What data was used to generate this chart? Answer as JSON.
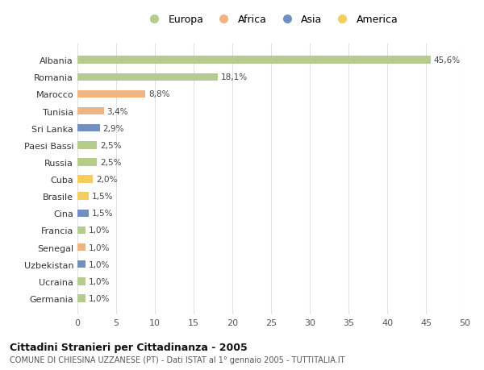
{
  "countries": [
    "Albania",
    "Romania",
    "Marocco",
    "Tunisia",
    "Sri Lanka",
    "Paesi Bassi",
    "Russia",
    "Cuba",
    "Brasile",
    "Cina",
    "Francia",
    "Senegal",
    "Uzbekistan",
    "Ucraina",
    "Germania"
  ],
  "values": [
    45.6,
    18.1,
    8.8,
    3.4,
    2.9,
    2.5,
    2.5,
    2.0,
    1.5,
    1.5,
    1.0,
    1.0,
    1.0,
    1.0,
    1.0
  ],
  "labels": [
    "45,6%",
    "18,1%",
    "8,8%",
    "3,4%",
    "2,9%",
    "2,5%",
    "2,5%",
    "2,0%",
    "1,5%",
    "1,5%",
    "1,0%",
    "1,0%",
    "1,0%",
    "1,0%",
    "1,0%"
  ],
  "continents": [
    "Europa",
    "Europa",
    "Africa",
    "Africa",
    "Asia",
    "Europa",
    "Europa",
    "America",
    "America",
    "Asia",
    "Europa",
    "Africa",
    "Asia",
    "Europa",
    "Europa"
  ],
  "continent_colors": {
    "Europa": "#b5cc8e",
    "Africa": "#f0b482",
    "Asia": "#7090c0",
    "America": "#f5cc60"
  },
  "legend_items": [
    "Europa",
    "Africa",
    "Asia",
    "America"
  ],
  "title": "Cittadini Stranieri per Cittadinanza - 2005",
  "subtitle": "COMUNE DI CHIESINA UZZANESE (PT) - Dati ISTAT al 1° gennaio 2005 - TUTTITALIA.IT",
  "xlim": [
    0,
    50
  ],
  "xticks": [
    0,
    5,
    10,
    15,
    20,
    25,
    30,
    35,
    40,
    45,
    50
  ],
  "background_color": "#ffffff",
  "grid_color": "#e0e0e0",
  "bar_height": 0.45
}
